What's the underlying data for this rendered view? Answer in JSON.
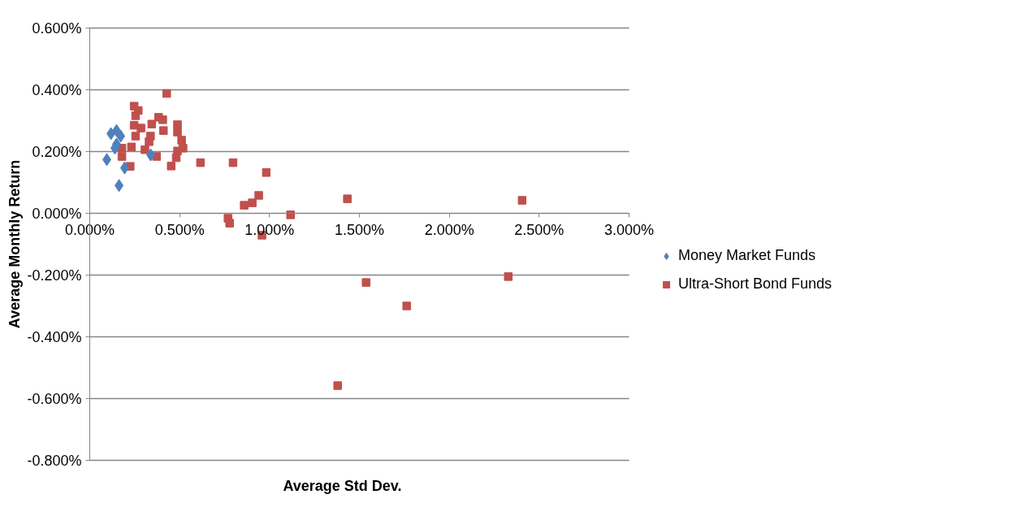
{
  "chart_data": {
    "type": "scatter",
    "xlabel": "Average Std Dev.",
    "ylabel": "Average Monthly Return",
    "xlim": [
      0,
      3
    ],
    "ylim": [
      -0.8,
      0.6
    ],
    "xticks": [
      {
        "value": 0,
        "label": "0.000%"
      },
      {
        "value": 0.5,
        "label": "0.500%"
      },
      {
        "value": 1,
        "label": "1.000%"
      },
      {
        "value": 1.5,
        "label": "1.500%"
      },
      {
        "value": 2,
        "label": "2.000%"
      },
      {
        "value": 2.5,
        "label": "2.500%"
      },
      {
        "value": 3,
        "label": "3.000%"
      }
    ],
    "yticks": [
      {
        "value": -0.8,
        "label": "-0.800%"
      },
      {
        "value": -0.6,
        "label": "-0.600%"
      },
      {
        "value": -0.4,
        "label": "-0.400%"
      },
      {
        "value": -0.2,
        "label": "-0.200%"
      },
      {
        "value": 0,
        "label": "0.000%"
      },
      {
        "value": 0.2,
        "label": "0.200%"
      },
      {
        "value": 0.4,
        "label": "0.400%"
      },
      {
        "value": 0.6,
        "label": "0.600%"
      }
    ],
    "grid": "y",
    "legend": "right",
    "series": [
      {
        "name": "Money Market Funds",
        "color": "#4f81bd",
        "marker": "diamond",
        "x": [
          0.118,
          0.149,
          0.172,
          0.149,
          0.14,
          0.095,
          0.339,
          0.194,
          0.163
        ],
        "values": [
          0.258,
          0.268,
          0.25,
          0.224,
          0.211,
          0.174,
          0.189,
          0.147,
          0.09
        ]
      },
      {
        "name": "Ultra-Short Bond Funds",
        "color": "#c0504d",
        "marker": "square",
        "x": [
          0.428,
          0.247,
          0.27,
          0.255,
          0.383,
          0.406,
          0.345,
          0.247,
          0.285,
          0.488,
          0.41,
          0.488,
          0.255,
          0.338,
          0.33,
          0.511,
          0.519,
          0.179,
          0.232,
          0.307,
          0.488,
          0.179,
          0.372,
          0.481,
          0.616,
          0.797,
          0.225,
          0.453,
          0.982,
          0.94,
          0.904,
          0.859,
          0.769,
          0.778,
          1.117,
          1.433,
          2.405,
          0.958,
          1.537,
          1.763,
          2.328,
          1.379
        ],
        "values": [
          0.388,
          0.347,
          0.333,
          0.316,
          0.311,
          0.303,
          0.289,
          0.285,
          0.276,
          0.287,
          0.268,
          0.263,
          0.25,
          0.25,
          0.232,
          0.237,
          0.211,
          0.211,
          0.215,
          0.206,
          0.202,
          0.184,
          0.184,
          0.18,
          0.164,
          0.164,
          0.152,
          0.153,
          0.132,
          0.058,
          0.034,
          0.026,
          -0.016,
          -0.032,
          -0.005,
          0.047,
          0.042,
          -0.071,
          -0.224,
          -0.3,
          -0.205,
          -0.558
        ]
      }
    ]
  }
}
